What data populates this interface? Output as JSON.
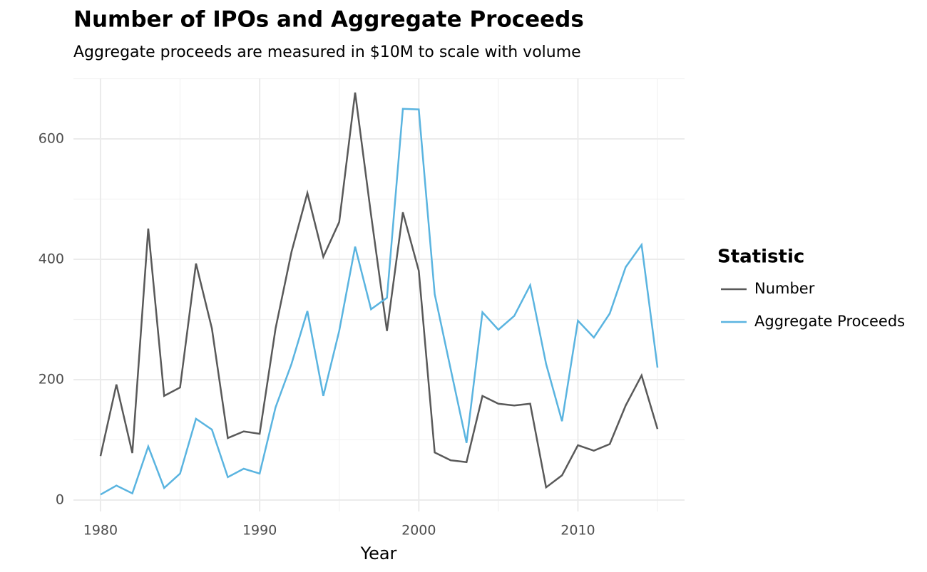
{
  "chart_data": {
    "type": "line",
    "title": "Number of IPOs and Aggregate Proceeds",
    "subtitle": "Aggregate proceeds are measured in $10M to scale with volume",
    "x_label": "Year",
    "legend_title": "Statistic",
    "x": [
      1980,
      1981,
      1982,
      1983,
      1984,
      1985,
      1986,
      1987,
      1988,
      1989,
      1990,
      1991,
      1992,
      1993,
      1994,
      1995,
      1996,
      1997,
      1998,
      1999,
      2000,
      2001,
      2002,
      2003,
      2004,
      2005,
      2006,
      2007,
      2008,
      2009,
      2010,
      2011,
      2012,
      2013,
      2014,
      2015
    ],
    "series": [
      {
        "name": "Number",
        "color": "#595959",
        "values": [
          73,
          192,
          78,
          451,
          173,
          187,
          393,
          285,
          103,
          114,
          110,
          285,
          412,
          510,
          404,
          462,
          677,
          474,
          281,
          478,
          381,
          79,
          66,
          63,
          173,
          160,
          157,
          160,
          21,
          41,
          91,
          82,
          93,
          157,
          207,
          118
        ]
      },
      {
        "name": "Aggregate Proceeds",
        "color": "#5ab4e0",
        "values": [
          9,
          24,
          11,
          89,
          20,
          44,
          135,
          117,
          38,
          52,
          44,
          154,
          226,
          314,
          173,
          281,
          421,
          317,
          336,
          650,
          649,
          342,
          218,
          95,
          312,
          283,
          306,
          357,
          226,
          131,
          298,
          270,
          310,
          387,
          424,
          220
        ]
      }
    ],
    "xlim": [
      1978.3,
      2016.7
    ],
    "ylim": [
      -19,
      700.6
    ],
    "xticks": [
      1980,
      1990,
      2000,
      2010
    ],
    "yticks": [
      0,
      200,
      400,
      600
    ],
    "x_minor_grid": [
      1985,
      1995,
      2005,
      2015
    ],
    "y_minor_grid": [
      100,
      300,
      500,
      700
    ],
    "grid": true
  }
}
